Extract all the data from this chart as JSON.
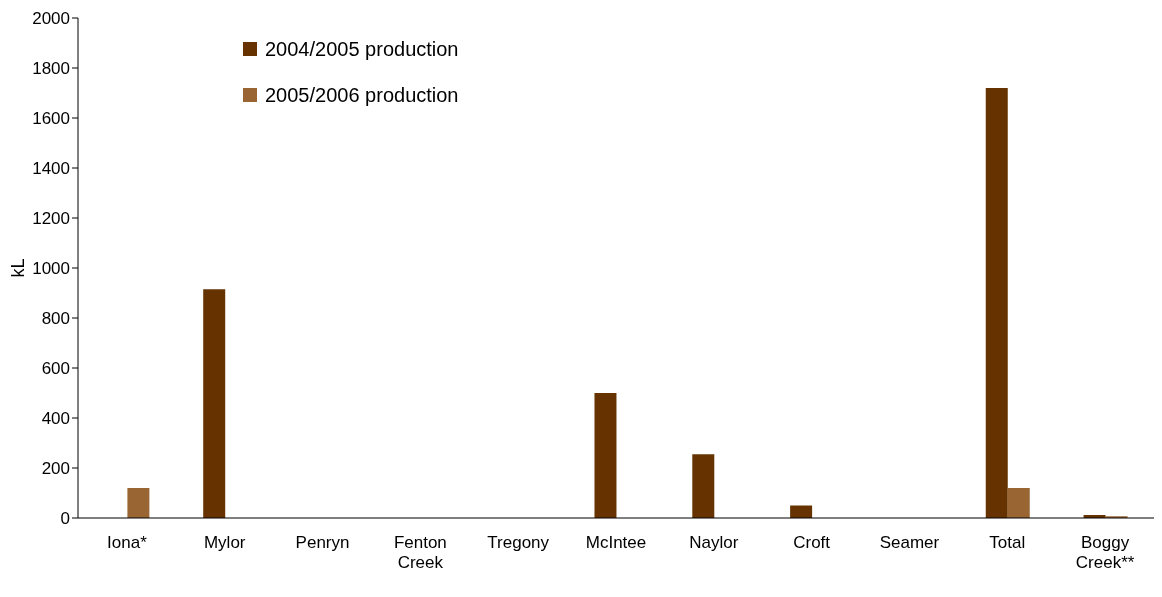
{
  "chart_data": {
    "type": "bar",
    "ylabel": "kL",
    "categories": [
      "Iona*",
      "Mylor",
      "Penryn",
      "Fenton Creek",
      "Tregony",
      "McIntee",
      "Naylor",
      "Croft",
      "Seamer",
      "Total",
      "Boggy Creek**"
    ],
    "series": [
      {
        "name": "2004/2005 production",
        "color": "#663300",
        "values": [
          0,
          915,
          0,
          0,
          0,
          500,
          255,
          50,
          0,
          1720,
          12
        ]
      },
      {
        "name": "2005/2006 production",
        "color": "#996633",
        "values": [
          120,
          0,
          0,
          0,
          0,
          0,
          0,
          0,
          0,
          120,
          7
        ]
      }
    ],
    "ylim": [
      0,
      2000
    ],
    "yticks": [
      0,
      200,
      400,
      600,
      800,
      1000,
      1200,
      1400,
      1600,
      1800,
      2000
    ],
    "grid": false,
    "legend": "top left"
  }
}
